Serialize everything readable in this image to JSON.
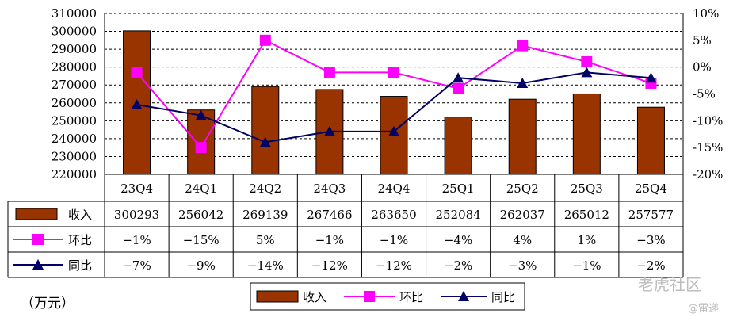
{
  "chart_data": {
    "type": "bar",
    "categories": [
      "23Q4",
      "24Q1",
      "24Q2",
      "24Q3",
      "24Q4",
      "25Q1",
      "25Q2",
      "25Q3",
      "25Q4"
    ],
    "series": [
      {
        "name": "收入",
        "type": "bar",
        "axis": "left",
        "values": [
          300293,
          256042,
          269139,
          267466,
          263650,
          252084,
          262037,
          265012,
          257577
        ]
      },
      {
        "name": "环比",
        "type": "line",
        "axis": "right",
        "values": [
          -1,
          -15,
          5,
          -1,
          -1,
          -4,
          4,
          1,
          -3
        ]
      },
      {
        "name": "同比",
        "type": "line",
        "axis": "right",
        "values": [
          -7,
          -9,
          -14,
          -12,
          -12,
          -2,
          -3,
          -1,
          -2
        ]
      }
    ],
    "table": {
      "rows": [
        {
          "label": "收入",
          "cells": [
            "300293",
            "256042",
            "269139",
            "267466",
            "263650",
            "252084",
            "262037",
            "265012",
            "257577"
          ]
        },
        {
          "label": "环比",
          "cells": [
            "−1%",
            "−15%",
            "5%",
            "−1%",
            "−1%",
            "−4%",
            "4%",
            "1%",
            "−3%"
          ]
        },
        {
          "label": "同比",
          "cells": [
            "−7%",
            "−9%",
            "−14%",
            "−12%",
            "−12%",
            "−2%",
            "−3%",
            "−1%",
            "−2%"
          ]
        }
      ]
    },
    "left_axis": {
      "ylim": [
        220000,
        310000
      ],
      "ticks": [
        "220000",
        "230000",
        "240000",
        "250000",
        "260000",
        "270000",
        "280000",
        "290000",
        "300000",
        "310000"
      ]
    },
    "right_axis": {
      "ylim": [
        -20,
        10
      ],
      "ticks": [
        "-20%",
        "-15%",
        "-10%",
        "-5%",
        "0%",
        "5%",
        "10%"
      ]
    },
    "unit_label": "（万元）",
    "legend": {
      "placement": "bottom",
      "items": [
        "收入",
        "环比",
        "同比"
      ]
    },
    "grid": true,
    "colors": {
      "bar": "#993300",
      "bar_stroke": "#000000",
      "hb": "#ff00ff",
      "tb": "#000066",
      "grid": "#000000"
    }
  },
  "watermark": {
    "brand": "老虎社区",
    "handle": "@雷递"
  }
}
